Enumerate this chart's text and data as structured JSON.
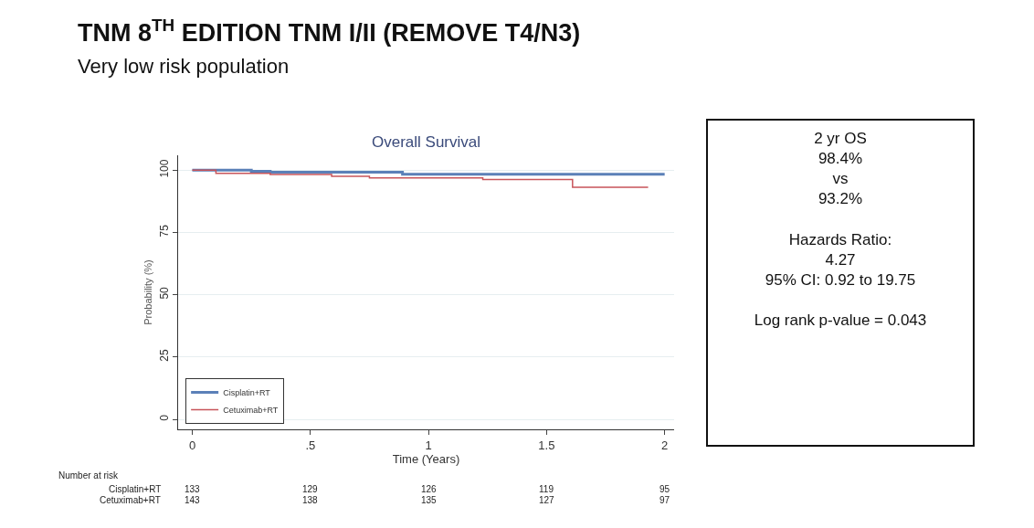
{
  "chart_data": {
    "type": "step",
    "title": "TNM 8$^{TH}$ EDITION TNM I/II (REMOVE T4/N3)",
    "subtitle": "Very low risk population",
    "xlabel": "Time (Years)",
    "ylabel": "Probability (%)",
    "series": [
      {
        "name": "Cisplatin+RT",
        "color": "#5b80b8",
        "x": [
          0,
          0.25,
          0.33,
          0.89,
          2.0
        ],
        "values": [
          100,
          99.6,
          99.2,
          98.4,
          98.4
        ]
      },
      {
        "name": "Cetuximab+RT",
        "color": "#c8545a",
        "x": [
          0,
          0.1,
          0.33,
          0.59,
          0.75,
          1.23,
          1.61,
          1.93
        ],
        "values": [
          100,
          98.8,
          98.3,
          97.6,
          96.9,
          96.3,
          93.2,
          93.2
        ]
      }
    ],
    "xlim": [
      -0.06,
      2.04
    ],
    "ylim": [
      -4,
      106
    ],
    "xticks": [
      {
        "value": 0,
        "label": "0"
      },
      {
        "value": 0.5,
        "label": ".5"
      },
      1,
      1.5,
      2
    ],
    "yticks": [
      0,
      25,
      50,
      75,
      100
    ],
    "grid": "y",
    "legend": "bottom left",
    "marker": "none",
    "line_style": "solid",
    "annotations": [
      "Overall Survival",
      "2 yr OS\n98.4%\nvs\n93.2%\n\nHazards Ratio:\n4.27\n95% CI: 0.92 to 19.75\n\nLog rank p-value = 0.043",
      "Number at risk",
      "Cisplatin+RT 133 129 126 119 95",
      "Cetuximab+RT 143 138 135 127 97"
    ]
  }
}
